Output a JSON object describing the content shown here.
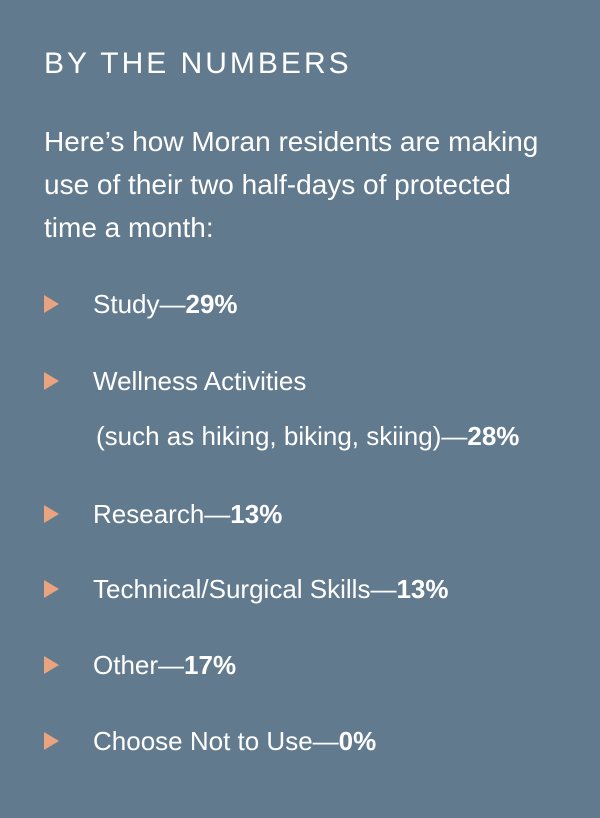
{
  "heading": "BY THE NUMBERS",
  "intro": "Here’s how Moran residents are making use of their two half-days of protected time a month:",
  "dash": "—",
  "items": [
    {
      "label": "Study",
      "percent": "29%"
    },
    {
      "label": "Wellness Activities",
      "label_line2": "(such as hiking, biking, skiing)",
      "percent": "28%"
    },
    {
      "label": "Research",
      "percent": "13%"
    },
    {
      "label": "Technical/Surgical Skills",
      "percent": "13%"
    },
    {
      "label": "Other",
      "percent": "17%"
    },
    {
      "label": "Choose Not to Use",
      "percent": "0%"
    }
  ],
  "colors": {
    "background": "#627a8d",
    "text": "#ffffff",
    "bullet": "#e9a37f"
  },
  "icons": {
    "bullet": "triangle-right-icon"
  }
}
